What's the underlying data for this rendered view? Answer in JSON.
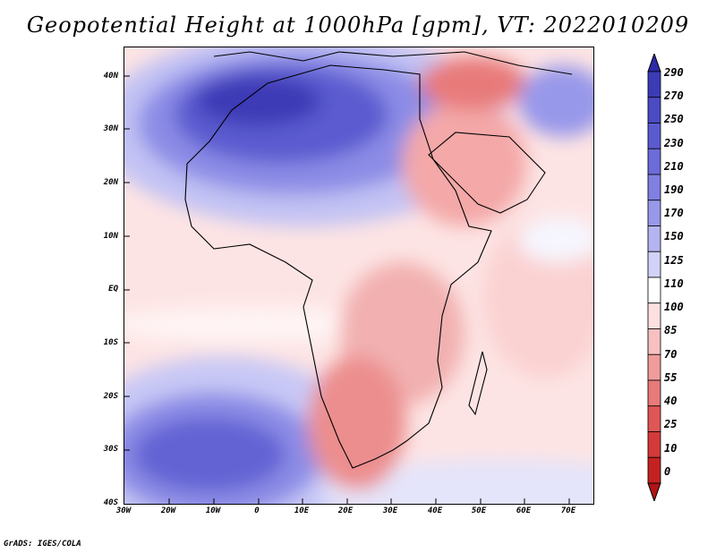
{
  "title": "Geopotential Height at 1000hPa [gpm], VT: 2022010209",
  "footer": "GrADS: IGES/COLA",
  "axes": {
    "latitude_labels": [
      "40N",
      "30N",
      "20N",
      "10N",
      "EQ",
      "10S",
      "20S",
      "30S",
      "40S"
    ],
    "longitude_labels": [
      "30W",
      "20W",
      "10W",
      "0",
      "10E",
      "20E",
      "30E",
      "40E",
      "50E",
      "60E",
      "70E"
    ]
  },
  "colorbar": {
    "labels": [
      "290",
      "270",
      "250",
      "230",
      "210",
      "190",
      "170",
      "150",
      "125",
      "110",
      "100",
      "85",
      "70",
      "55",
      "40",
      "25",
      "10",
      "0"
    ],
    "colors": [
      "#2c2aa6",
      "#3c3bb6",
      "#4b4bc4",
      "#5b5bd0",
      "#6c6cda",
      "#8080e2",
      "#9898ea",
      "#b4b4f2",
      "#d2d2f8",
      "#ffffff",
      "#fde0e0",
      "#f8c0c0",
      "#f09c9c",
      "#e87a7a",
      "#e05656",
      "#d43a3a",
      "#c42222",
      "#b01414"
    ]
  }
}
